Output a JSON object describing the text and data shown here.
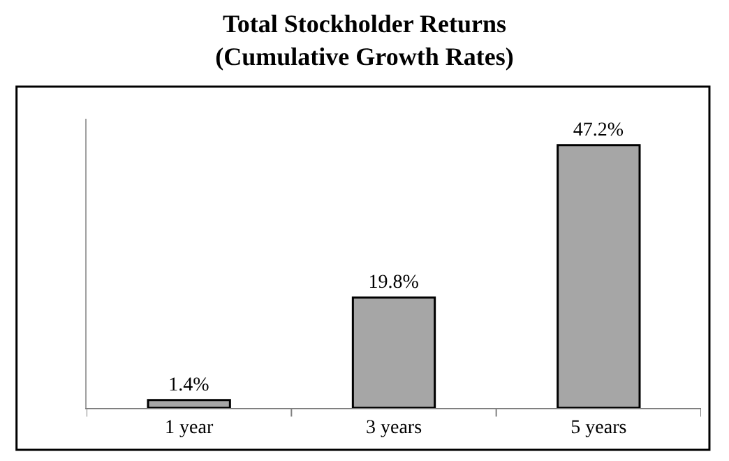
{
  "chart_data": {
    "type": "bar",
    "title": "Total Stockholder Returns\n(Cumulative Growth Rates)",
    "categories": [
      "1 year",
      "3 years",
      "5 years"
    ],
    "values": [
      1.4,
      19.8,
      47.2
    ],
    "value_labels": [
      "1.4%",
      "19.8%",
      "47.2%"
    ],
    "color": "#a6a6a6",
    "legend": false
  }
}
